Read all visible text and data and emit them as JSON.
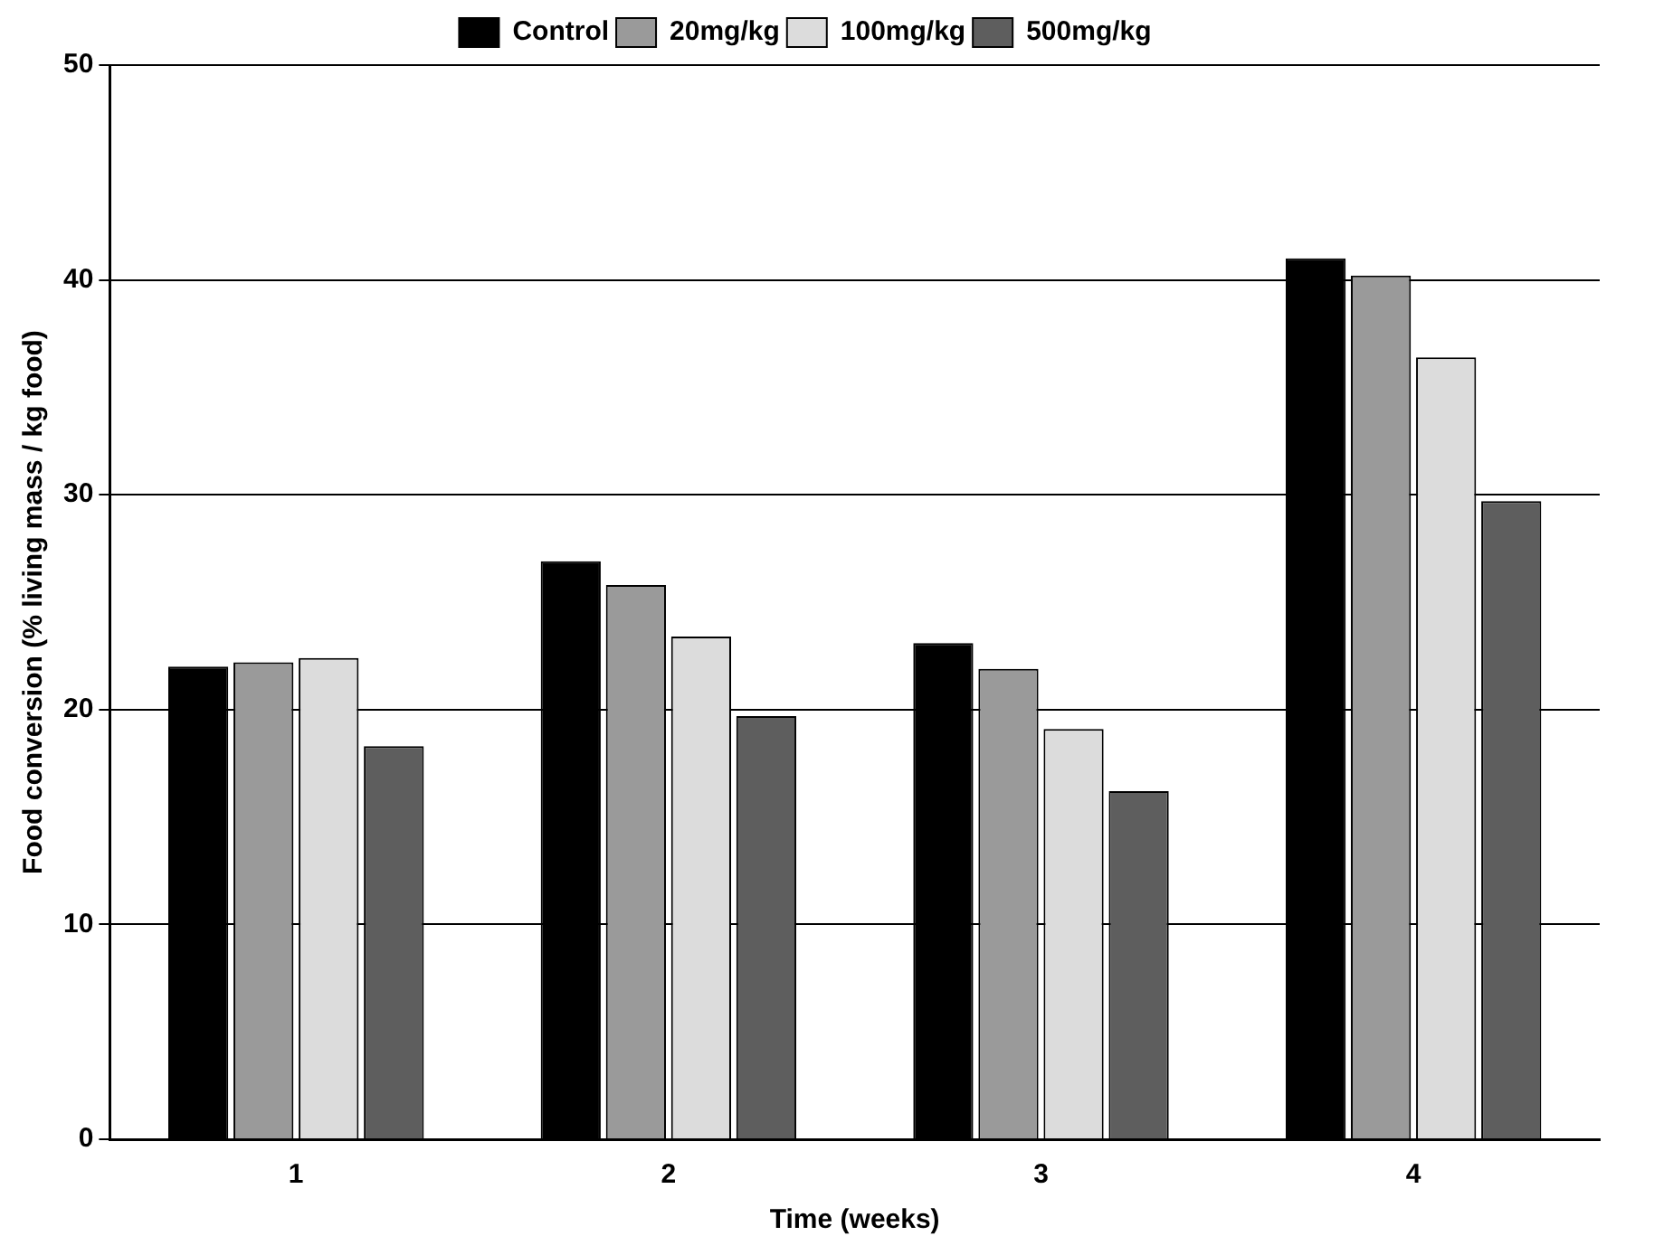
{
  "chart_data": {
    "type": "bar",
    "xlabel": "Time (weeks)",
    "ylabel": "Food conversion (% living mass / kg food)",
    "categories": [
      "1",
      "2",
      "3",
      "4"
    ],
    "series": [
      {
        "name": "Control",
        "color": "#000000",
        "values": [
          22.0,
          26.9,
          23.1,
          41.0
        ]
      },
      {
        "name": "20mg/kg",
        "color": "#9a9a9a",
        "values": [
          22.2,
          25.8,
          21.9,
          40.2
        ]
      },
      {
        "name": "100mg/kg",
        "color": "#dcdcdc",
        "values": [
          22.4,
          23.4,
          19.1,
          36.4
        ]
      },
      {
        "name": "500mg/kg",
        "color": "#5e5e5e",
        "values": [
          18.3,
          19.7,
          16.2,
          29.7
        ]
      }
    ],
    "ylim": [
      0,
      50
    ],
    "yticks": [
      0,
      10,
      20,
      30,
      40,
      50
    ],
    "grid": "y",
    "legend": "top"
  }
}
